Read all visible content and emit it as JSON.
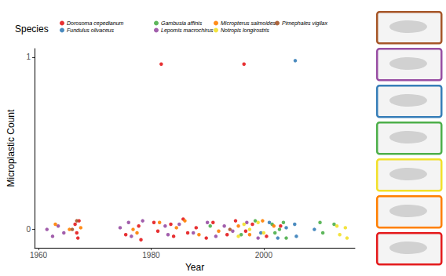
{
  "chart_data": {
    "type": "scatter",
    "legend_title": "Species",
    "x_label": "Year",
    "y_label": "Microplastic Count",
    "xlim": [
      1959.3,
      2016.2
    ],
    "xticks": [
      1960,
      1980,
      2000
    ],
    "ylim": [
      -0.107,
      1.05
    ],
    "yticks": [
      0,
      1
    ],
    "grid": false,
    "legend": "top",
    "marker": "circle",
    "series": [
      {
        "name": "Dorosoma cepedianum",
        "color": "#E41A1C",
        "x": [
          1966.5,
          1966.8,
          1967.2,
          1967.0,
          1975.5,
          1977.8,
          1978.2,
          1980.5,
          1981.2,
          1983.5,
          1984.0,
          1985.7,
          1986.5,
          1988.0,
          1989.8,
          1991.0,
          1993.5,
          1995.0,
          1996.8,
          1998.0,
          2000.5,
          2003.0,
          1981.8,
          1996.5
        ],
        "values": [
          0.03,
          -0.02,
          0.05,
          -0.05,
          -0.03,
          0.02,
          -0.06,
          0.04,
          -0.01,
          0.03,
          -0.04,
          0.06,
          -0.02,
          0.01,
          -0.05,
          0.04,
          -0.03,
          0.05,
          -0.01,
          0.03,
          -0.04,
          0.02,
          0.96,
          0.96
        ]
      },
      {
        "name": "Fundulus olivaceus",
        "color": "#377EB8",
        "x": [
          1999.5,
          2001.0,
          2002.5,
          2004.0,
          2005.5,
          2005.8,
          2009.0,
          2005.6
        ],
        "values": [
          -0.02,
          0.04,
          -0.05,
          0.01,
          0.03,
          -0.04,
          0.0,
          0.98
        ]
      },
      {
        "name": "Gambusia affinis",
        "color": "#4DAF4A",
        "x": [
          1990.5,
          1996.0,
          1998.5,
          2001.5,
          2002.0,
          2003.5,
          2004.0,
          2002.8,
          2010.0,
          2010.5,
          2012.5
        ],
        "values": [
          0.02,
          -0.03,
          0.05,
          0.03,
          -0.02,
          0.04,
          -0.05,
          0.0,
          0.04,
          -0.02,
          0.03
        ]
      },
      {
        "name": "Lepomis macrochirus",
        "color": "#984EA3",
        "x": [
          1961.5,
          1962.5,
          1963.5,
          1964.5,
          1974.5,
          1976.0,
          1976.5,
          1978.5,
          1982.5,
          1983.0,
          1985.0,
          1987.5,
          1990.0,
          1991.5,
          1993.0,
          1994.5,
          1997.0,
          1999.0
        ],
        "values": [
          0.0,
          -0.04,
          0.02,
          -0.02,
          0.01,
          0.04,
          -0.04,
          0.05,
          0.02,
          -0.03,
          0.03,
          -0.02,
          0.04,
          -0.04,
          0.02,
          -0.01,
          0.04,
          -0.05
        ]
      },
      {
        "name": "Micropterus salmoides",
        "color": "#FF7F00",
        "x": [
          1963.0,
          1965.5,
          1967.5,
          1976.8,
          1977.5,
          1981.5,
          1984.5,
          1986.0,
          1988.5,
          1992.0,
          1995.5,
          1997.5,
          1999.8,
          2001.8
        ],
        "values": [
          0.03,
          0.0,
          0.01,
          0.0,
          -0.02,
          0.04,
          0.01,
          0.05,
          -0.03,
          -0.01,
          0.02,
          -0.03,
          0.05,
          0.02
        ]
      },
      {
        "name": "Notropis longirostris",
        "color": "#F2E02A",
        "x": [
          1995.5,
          1996.5,
          1997.5,
          1999.0,
          2000.0,
          2013.0,
          2013.5,
          2014.5,
          2014.8
        ],
        "values": [
          -0.04,
          0.03,
          0.0,
          0.04,
          -0.02,
          0.02,
          -0.03,
          0.01,
          -0.05
        ]
      },
      {
        "name": "Pimephales vigilax",
        "color": "#A65628",
        "x": [
          1966.0,
          1966.8,
          1994.0
        ],
        "values": [
          0.0,
          0.05,
          0.0
        ]
      }
    ]
  }
}
